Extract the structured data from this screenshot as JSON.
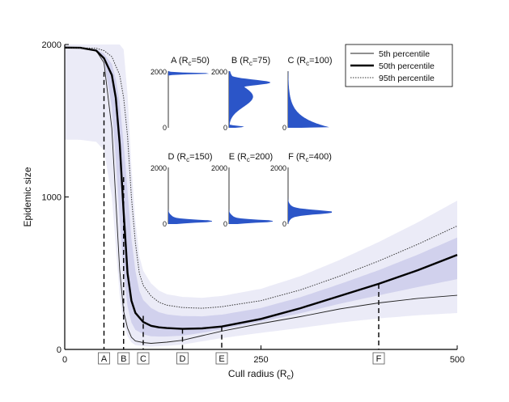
{
  "chart_data": {
    "type": "line",
    "title": "",
    "xlabel": "Cull radius (R",
    "xlabel_sub": "c",
    "xlabel_close": ")",
    "ylabel": "Epidemic size",
    "xlim": [
      0,
      500
    ],
    "ylim": [
      0,
      2000
    ],
    "xticks": [
      0,
      250,
      500
    ],
    "yticks": [
      0,
      1000,
      2000
    ],
    "grid": false,
    "legend_position": "top-right",
    "colors": {
      "line": "#000000",
      "density": "#3a3ab4",
      "hist": "#2b55c8"
    },
    "series": [
      {
        "name": "5th percentile",
        "style": "thin",
        "x": [
          0,
          20,
          40,
          50,
          60,
          65,
          70,
          75,
          80,
          85,
          90,
          100,
          110,
          130,
          150,
          175,
          200,
          250,
          300,
          350,
          400,
          450,
          500
        ],
        "values": [
          1980,
          1978,
          1960,
          1880,
          1450,
          980,
          520,
          250,
          140,
          80,
          55,
          45,
          40,
          48,
          60,
          90,
          120,
          170,
          215,
          265,
          305,
          335,
          355
        ]
      },
      {
        "name": "50th percentile",
        "style": "thick",
        "x": [
          0,
          20,
          40,
          50,
          60,
          65,
          70,
          75,
          80,
          85,
          90,
          100,
          110,
          120,
          130,
          150,
          175,
          200,
          250,
          300,
          350,
          400,
          450,
          500
        ],
        "values": [
          1980,
          1978,
          1960,
          1910,
          1800,
          1650,
          1350,
          900,
          500,
          320,
          240,
          180,
          155,
          145,
          140,
          135,
          138,
          150,
          200,
          270,
          350,
          430,
          520,
          620
        ]
      },
      {
        "name": "95th percentile",
        "style": "dotted",
        "x": [
          0,
          20,
          40,
          50,
          60,
          70,
          75,
          80,
          85,
          90,
          95,
          100,
          110,
          120,
          130,
          150,
          175,
          200,
          250,
          300,
          350,
          400,
          450,
          500
        ],
        "values": [
          1980,
          1978,
          1975,
          1960,
          1920,
          1800,
          1650,
          1400,
          1000,
          700,
          500,
          420,
          350,
          310,
          290,
          275,
          270,
          280,
          320,
          390,
          480,
          580,
          690,
          810
        ]
      }
    ],
    "markers": [
      {
        "label": "A",
        "x": 50,
        "top": 1820
      },
      {
        "label": "B",
        "x": 75,
        "top": 1130
      },
      {
        "label": "C",
        "x": 100,
        "top": 220
      },
      {
        "label": "D",
        "x": 150,
        "top": 135
      },
      {
        "label": "E",
        "x": 200,
        "top": 150
      },
      {
        "label": "F",
        "x": 400,
        "top": 430
      }
    ],
    "insets": [
      {
        "label": "A (R",
        "sub": "c",
        "rest": "=50)",
        "ymax": "2000",
        "ymin": "0",
        "shape": "spike-top",
        "peak": 1920
      },
      {
        "label": "B (R",
        "sub": "c",
        "rest": "=75)",
        "ymax": "2000",
        "ymin": "0",
        "shape": "bimodal",
        "peak": 1600
      },
      {
        "label": "C (R",
        "sub": "c",
        "rest": "=100)",
        "ymax": "",
        "ymin": "0",
        "shape": "decay",
        "peak": 60
      },
      {
        "label": "D (R",
        "sub": "c",
        "rest": "=150)",
        "ymax": "2000",
        "ymin": "0",
        "shape": "low",
        "peak": 130
      },
      {
        "label": "E (R",
        "sub": "c",
        "rest": "=200)",
        "ymax": "2000",
        "ymin": "0",
        "shape": "low",
        "peak": 150
      },
      {
        "label": "F (R",
        "sub": "c",
        "rest": "=400)",
        "ymax": "2000",
        "ymin": "0",
        "shape": "mid",
        "peak": 420
      }
    ]
  }
}
